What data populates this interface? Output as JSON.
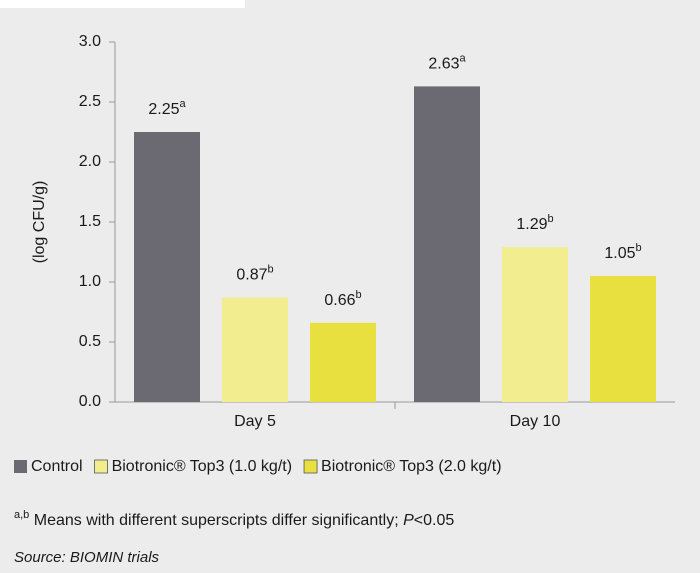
{
  "chart_data": {
    "type": "bar",
    "ylabel": "(log CFU/g)",
    "categories": [
      "Day 5",
      "Day 10"
    ],
    "series": [
      {
        "name": "Control",
        "color": "#6b6a73",
        "values": [
          2.25,
          2.63
        ],
        "superscripts": [
          "a",
          "a"
        ]
      },
      {
        "name": "Biotronic® Top3 (1.0 kg/t)",
        "color": "#f2ed8e",
        "values": [
          0.87,
          1.29
        ],
        "superscripts": [
          "b",
          "b"
        ]
      },
      {
        "name": "Biotronic® Top3 (2.0 kg/t)",
        "color": "#e8e03f",
        "values": [
          0.66,
          1.05
        ],
        "superscripts": [
          "b",
          "b"
        ]
      }
    ],
    "ylim": [
      0,
      3
    ],
    "yticks": [
      {
        "value": 0,
        "label": "0.0"
      },
      0.5,
      {
        "value": 1,
        "label": "1.0"
      },
      1.5,
      {
        "value": 2,
        "label": "2.0"
      },
      2.5,
      {
        "value": 3,
        "label": "3.0"
      }
    ],
    "grid": false,
    "footnote": {
      "marker": "a,b",
      "text": "Means with different superscripts differ significantly;",
      "p_symbol": "P",
      "p_value": "<0.05"
    },
    "source": "Source: BIOMIN trials"
  }
}
